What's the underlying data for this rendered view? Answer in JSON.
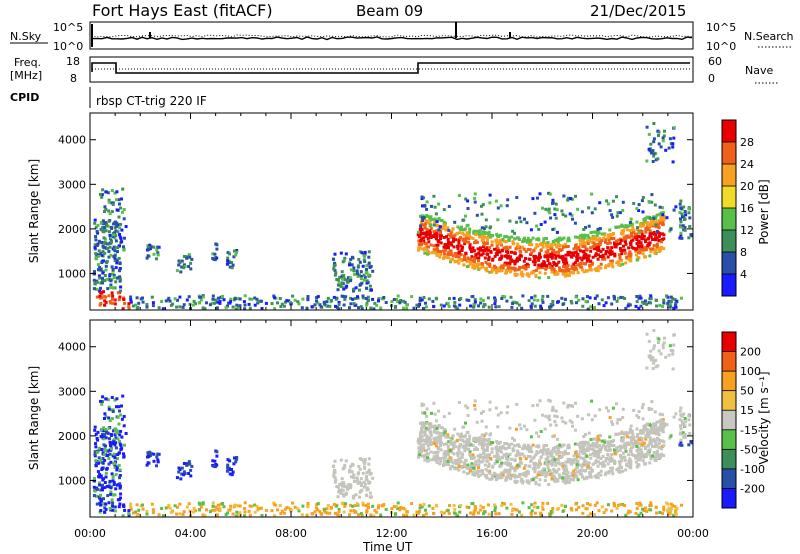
{
  "header": {
    "station": "Fort Hays East (fitACF)",
    "beam": "Beam 09",
    "date": "21/Dec/2015"
  },
  "top_panels": {
    "nsky_label": "N.Sky",
    "nsearch_label": "N.Search",
    "noise_ticks_left": [
      "10^5",
      "10^0"
    ],
    "noise_ticks_right": [
      "10^5",
      "10^0"
    ],
    "freq_label_line1": "Freq.",
    "freq_label_line2": "[MHz]",
    "freq_ticks": [
      "18",
      "8"
    ],
    "nave_label": "Nave",
    "nave_ticks": [
      "60",
      "0"
    ],
    "cpid_label": "CPID",
    "cpid_value": "rbsp CT-trig 220 IF"
  },
  "colors": {
    "power_scale": [
      "#1a1aff",
      "#2850a8",
      "#3c8f5a",
      "#58c048",
      "#f0dc28",
      "#f8a020",
      "#f06018",
      "#e80000"
    ],
    "velocity_scale": [
      "#1a1aff",
      "#2850a8",
      "#3c8f5a",
      "#58c048",
      "#c8c8c0",
      "#f0c040",
      "#f8a020",
      "#f06018",
      "#e80000"
    ],
    "gray_scatter": "#c4c4bc"
  },
  "chart_data": [
    {
      "type": "heatmap",
      "title": "",
      "xlabel": "",
      "ylabel": "Slant Range [km]",
      "xlim": [
        0,
        24
      ],
      "ylim": [
        180,
        4600
      ],
      "x_ticks": [
        "00:00",
        "04:00",
        "08:00",
        "12:00",
        "16:00",
        "20:00",
        "00:00"
      ],
      "y_ticks": [
        "1000",
        "2000",
        "3000",
        "4000"
      ],
      "colorbar_label": "Power [dB]",
      "colorbar_ticks": [
        "4",
        "8",
        "12",
        "16",
        "20",
        "24",
        "28"
      ],
      "colorbar_range": [
        0,
        32
      ]
    },
    {
      "type": "heatmap",
      "title": "",
      "xlabel": "Time UT",
      "ylabel": "Slant Range [km]",
      "xlim": [
        0,
        24
      ],
      "ylim": [
        180,
        4600
      ],
      "x_ticks": [
        "00:00",
        "04:00",
        "08:00",
        "12:00",
        "16:00",
        "20:00",
        "00:00"
      ],
      "y_ticks": [
        "1000",
        "2000",
        "3000",
        "4000"
      ],
      "colorbar_label": "Velocity [m s⁻¹]",
      "colorbar_ticks": [
        "200",
        "100",
        "50",
        "15",
        "-15",
        "-50",
        "-100",
        "-200"
      ]
    }
  ]
}
